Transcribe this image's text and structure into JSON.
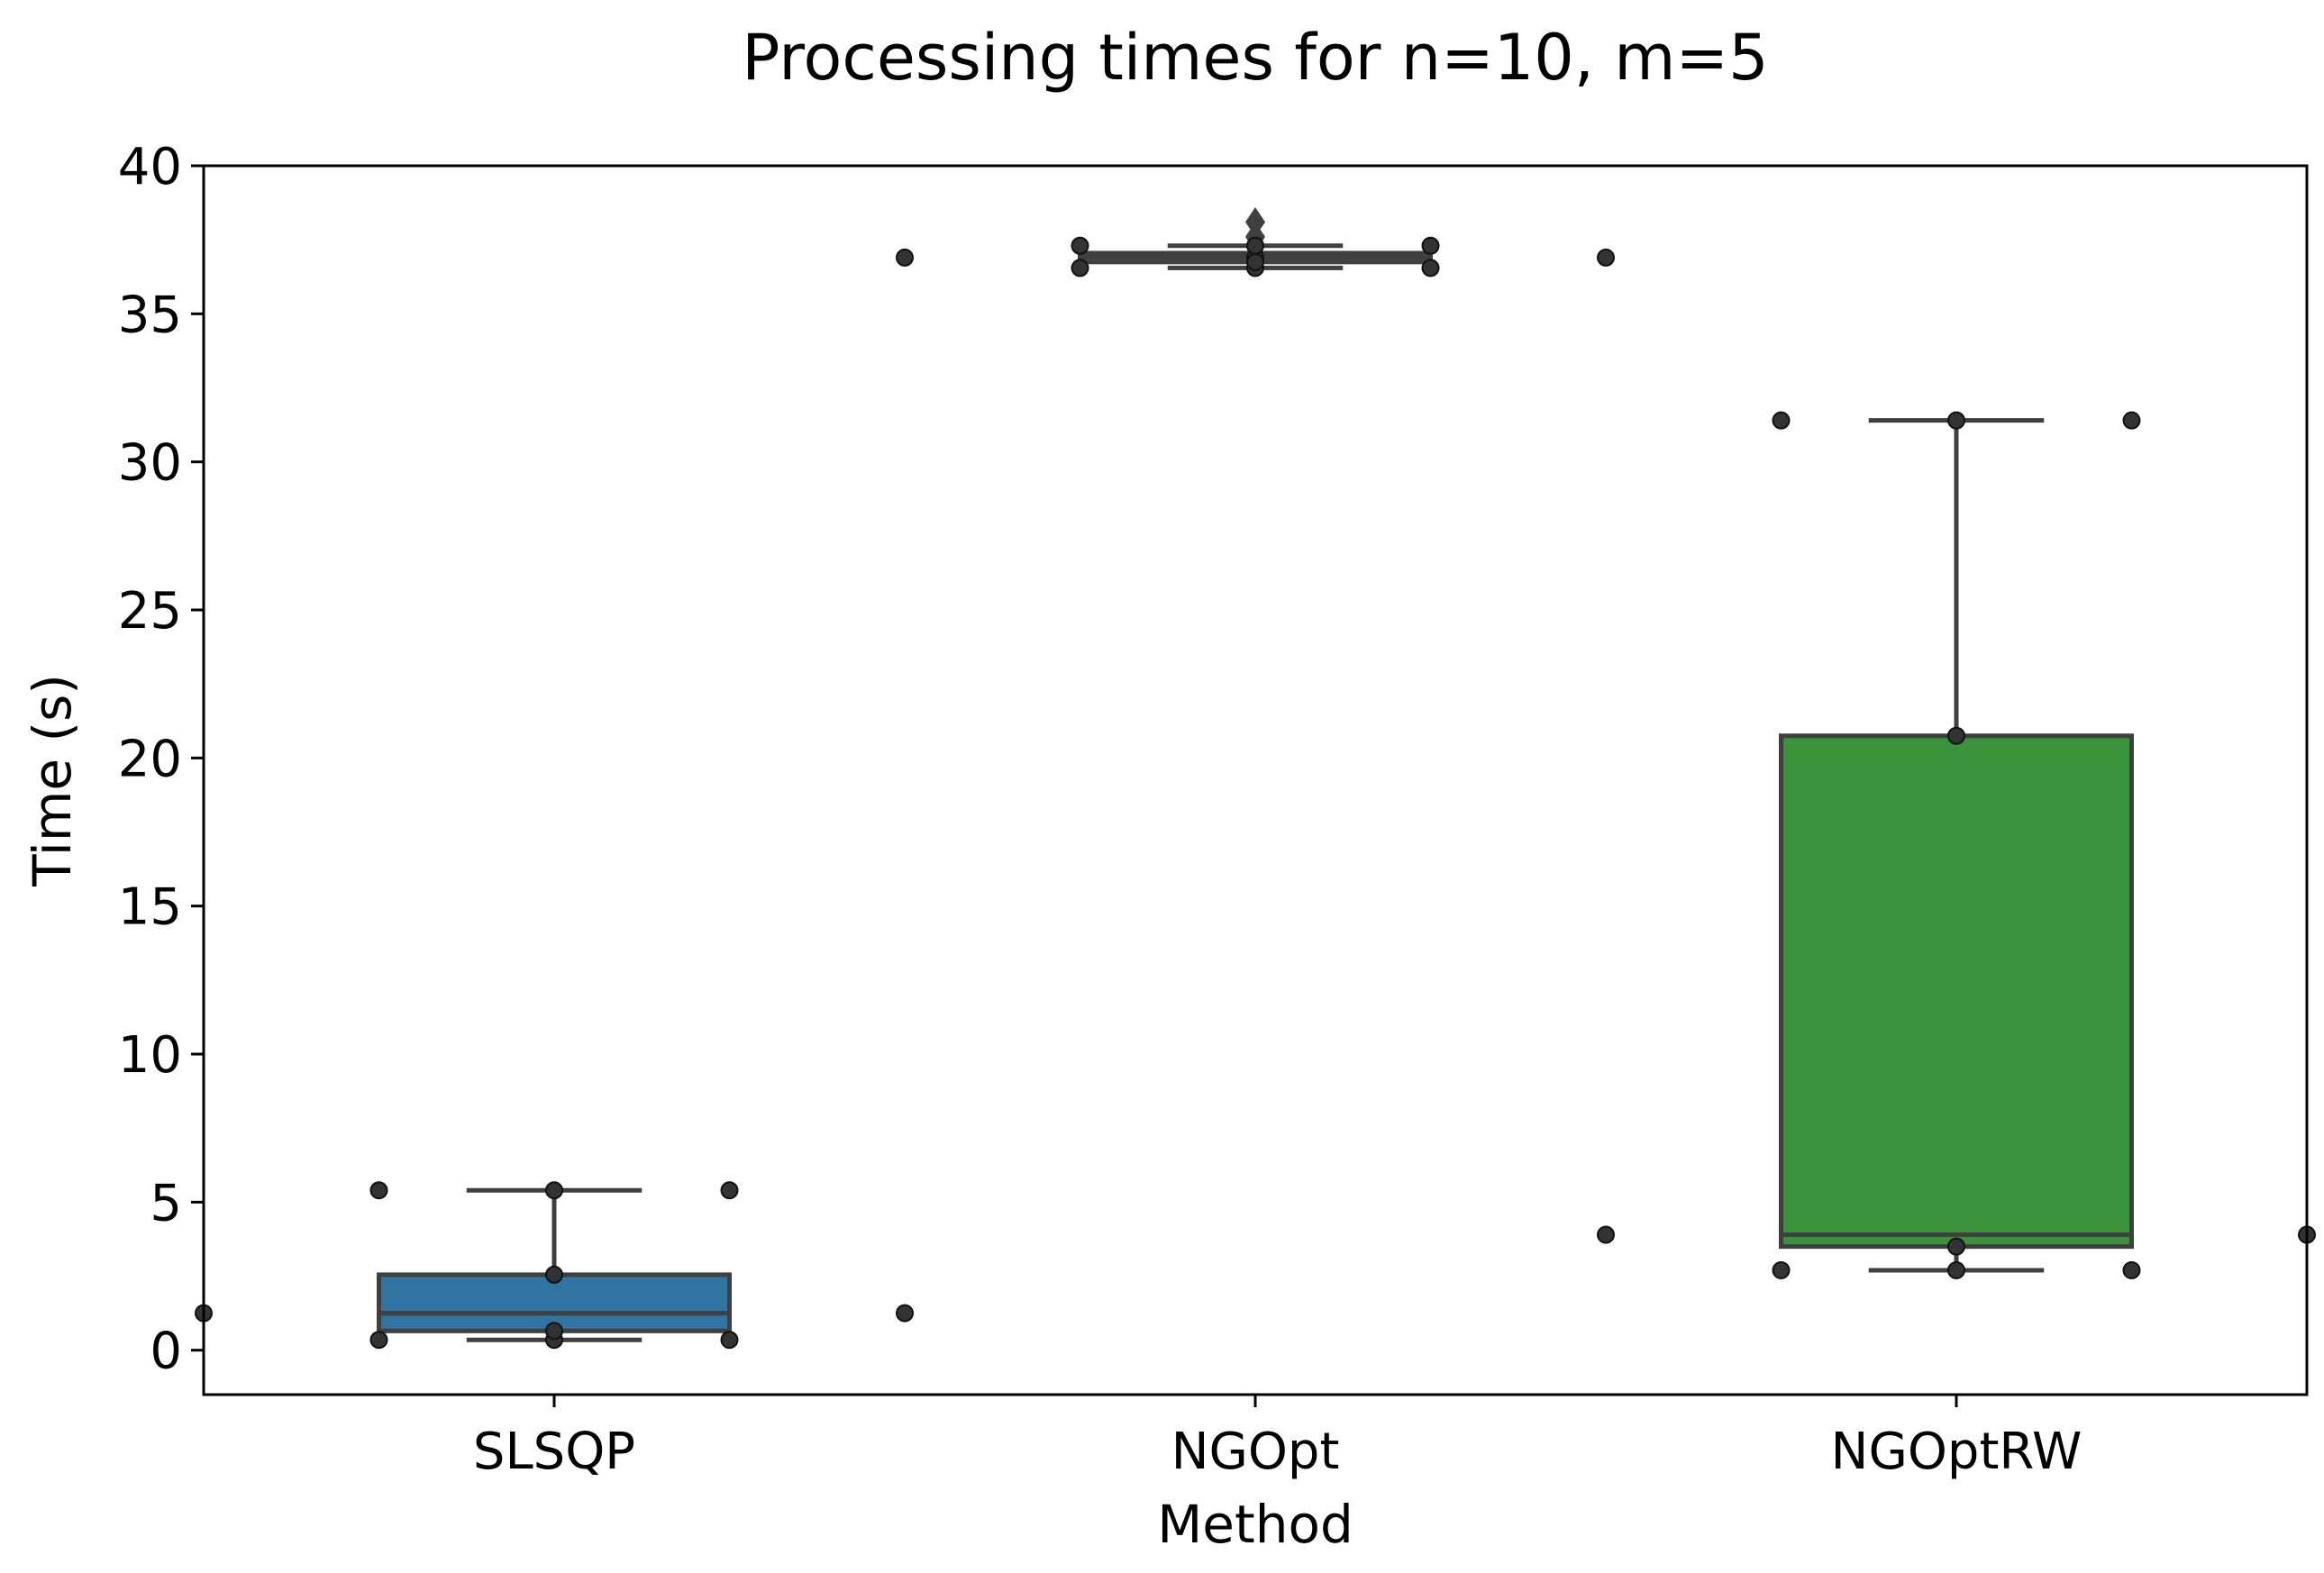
{
  "chart_data": {
    "type": "box",
    "title": "Processing times for n=10, m=5",
    "xlabel": "Method",
    "ylabel": "Time (s)",
    "ylim": [
      -1.5,
      40
    ],
    "yticks": [
      0,
      5,
      10,
      15,
      20,
      25,
      30,
      35,
      40
    ],
    "categories": [
      "SLSQP",
      "NGOpt",
      "NGOptRW"
    ],
    "grid": false,
    "legend": "none",
    "boxes": [
      {
        "name": "SLSQP",
        "color": "#3274a1",
        "whisker_low": 0.35,
        "q1": 0.65,
        "median": 1.25,
        "q3": 2.55,
        "whisker_high": 5.4,
        "outliers": []
      },
      {
        "name": "NGOpt",
        "color": "#e1812c",
        "whisker_low": 36.55,
        "q1": 36.75,
        "median": 36.9,
        "q3": 37.05,
        "whisker_high": 37.3,
        "outliers": [
          37.6,
          38.1
        ]
      },
      {
        "name": "NGOptRW",
        "color": "#3a923a",
        "whisker_low": 2.7,
        "q1": 3.5,
        "median": 3.9,
        "q3": 20.75,
        "whisker_high": 31.4,
        "outliers": []
      }
    ],
    "points": [
      {
        "category": "SLSQP",
        "values": [
          0.35,
          0.35,
          0.35,
          0.65,
          1.25,
          1.25,
          2.55,
          5.4,
          5.4,
          5.4
        ],
        "offsets": [
          -0.25,
          0,
          0.25,
          0,
          -0.5,
          0.5,
          0,
          -0.25,
          0,
          0.25
        ]
      },
      {
        "category": "NGOpt",
        "values": [
          36.55,
          36.55,
          36.55,
          36.9,
          36.9,
          36.9,
          37.3,
          37.3,
          37.3,
          36.75
        ],
        "offsets": [
          -0.25,
          0,
          0.25,
          -0.5,
          0,
          0.5,
          -0.25,
          0,
          0.25,
          0
        ]
      },
      {
        "category": "NGOptRW",
        "values": [
          2.7,
          2.7,
          2.7,
          3.5,
          3.9,
          3.9,
          20.75,
          31.4,
          31.4,
          31.4
        ],
        "offsets": [
          -0.25,
          0,
          0.25,
          0,
          -0.5,
          0.5,
          0,
          -0.25,
          0,
          0.25
        ]
      }
    ]
  }
}
